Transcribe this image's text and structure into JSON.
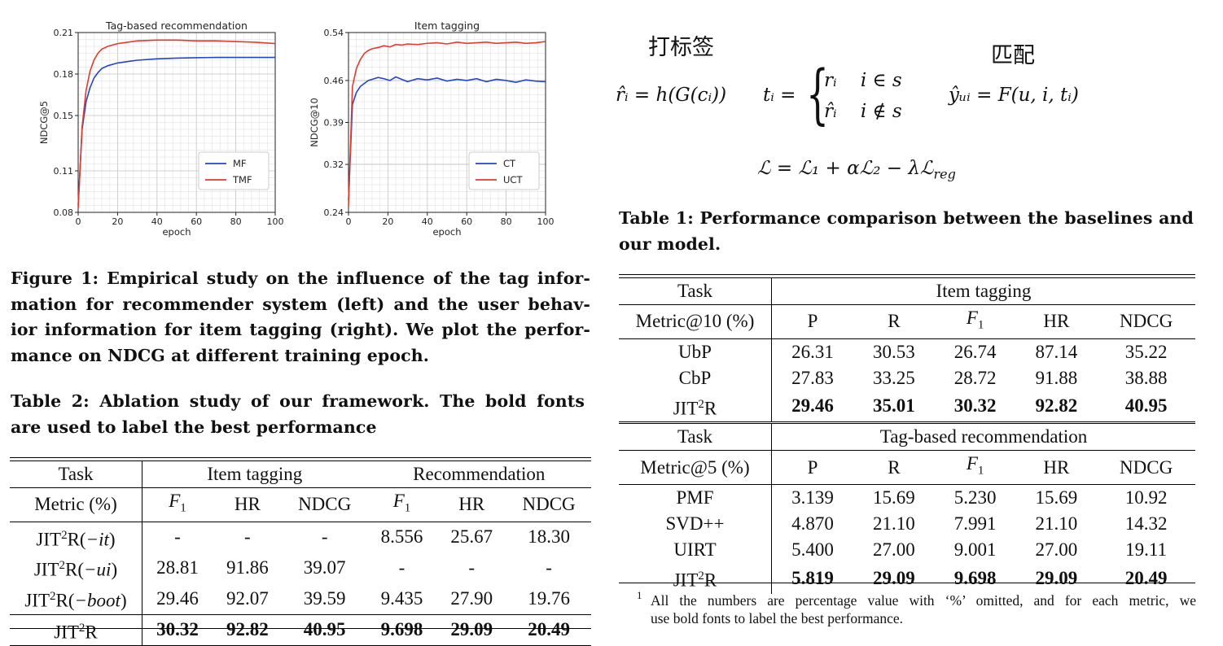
{
  "chart_data": [
    {
      "type": "line",
      "title": "Tag-based recommendation",
      "xlabel": "epoch",
      "ylabel": "NDCG@5",
      "xlim": [
        0,
        100
      ],
      "ylim": [
        0.08,
        0.21
      ],
      "xticks": [
        "0",
        "20",
        "40",
        "60",
        "80",
        "100"
      ],
      "yticks": [
        "0.08",
        "0.11",
        "0.15",
        "0.18",
        "0.21"
      ],
      "ytick_values": [
        0.08,
        0.11,
        0.15,
        0.18,
        0.21
      ],
      "grid": true,
      "legend_position": "lower-right",
      "series": [
        {
          "name": "MF",
          "color": "#2346c8",
          "x": [
            0,
            2,
            4,
            6,
            8,
            10,
            12,
            15,
            20,
            25,
            30,
            40,
            50,
            60,
            70,
            80,
            90,
            100
          ],
          "y": [
            0.085,
            0.14,
            0.16,
            0.17,
            0.177,
            0.181,
            0.184,
            0.186,
            0.188,
            0.189,
            0.19,
            0.191,
            0.1915,
            0.1918,
            0.192,
            0.192,
            0.192,
            0.192
          ]
        },
        {
          "name": "TMF",
          "color": "#e23b2e",
          "x": [
            0,
            2,
            4,
            6,
            8,
            10,
            12,
            15,
            20,
            25,
            30,
            40,
            50,
            60,
            70,
            80,
            90,
            100
          ],
          "y": [
            0.083,
            0.142,
            0.168,
            0.182,
            0.19,
            0.195,
            0.198,
            0.2,
            0.202,
            0.203,
            0.204,
            0.2045,
            0.2045,
            0.204,
            0.204,
            0.2035,
            0.203,
            0.202
          ]
        }
      ]
    },
    {
      "type": "line",
      "title": "Item tagging",
      "xlabel": "epoch",
      "ylabel": "NDCG@10",
      "xlim": [
        0,
        100
      ],
      "ylim": [
        0.24,
        0.54
      ],
      "xticks": [
        "0",
        "20",
        "40",
        "60",
        "80",
        "100"
      ],
      "yticks": [
        "0.24",
        "0.32",
        "0.39",
        "0.46",
        "0.54"
      ],
      "ytick_values": [
        0.24,
        0.32,
        0.39,
        0.46,
        0.54
      ],
      "grid": true,
      "legend_position": "lower-right",
      "series": [
        {
          "name": "CT",
          "color": "#2346c8",
          "x": [
            0,
            2,
            4,
            6,
            8,
            10,
            12,
            15,
            18,
            21,
            24,
            27,
            30,
            35,
            40,
            45,
            50,
            55,
            60,
            65,
            70,
            75,
            80,
            85,
            90,
            95,
            100
          ],
          "y": [
            0.26,
            0.42,
            0.44,
            0.45,
            0.455,
            0.46,
            0.462,
            0.465,
            0.463,
            0.46,
            0.466,
            0.462,
            0.458,
            0.463,
            0.461,
            0.464,
            0.459,
            0.462,
            0.46,
            0.463,
            0.458,
            0.462,
            0.46,
            0.457,
            0.461,
            0.459,
            0.458
          ]
        },
        {
          "name": "UCT",
          "color": "#e23b2e",
          "x": [
            0,
            2,
            4,
            6,
            8,
            10,
            12,
            15,
            18,
            21,
            24,
            27,
            30,
            35,
            40,
            45,
            50,
            55,
            60,
            65,
            70,
            75,
            80,
            85,
            90,
            95,
            100
          ],
          "y": [
            0.25,
            0.45,
            0.48,
            0.495,
            0.505,
            0.51,
            0.513,
            0.515,
            0.518,
            0.516,
            0.52,
            0.519,
            0.521,
            0.52,
            0.522,
            0.523,
            0.521,
            0.524,
            0.522,
            0.523,
            0.524,
            0.522,
            0.523,
            0.524,
            0.522,
            0.523,
            0.525
          ]
        }
      ]
    }
  ],
  "figure_caption": [
    "Figure 1: Empirical study on the influence of the tag infor-",
    "mation for recommender system (left) and the user behav-",
    "ior information for item tagging (right). We plot the perfor-",
    "mance on NDCG at different training epoch."
  ],
  "table2": {
    "caption": [
      "Table 2: Ablation study of our framework. The bold fonts",
      "are used to label the best performance"
    ],
    "header": {
      "task": "Task",
      "group1": "Item tagging",
      "group2": "Recommendation"
    },
    "metric_row": {
      "metric": "Metric (%)",
      "f": "F",
      "sub1": "1",
      "hr": "HR",
      "ndcg": "NDCG"
    },
    "rows": [
      {
        "base": "JIT",
        "sup": "2",
        "rest": "R(",
        "var": "−it",
        "close": ")",
        "cells": [
          "-",
          "-",
          "-",
          "8.556",
          "25.67",
          "18.30"
        ]
      },
      {
        "base": "JIT",
        "sup": "2",
        "rest": "R(",
        "var": "−ui",
        "close": ")",
        "cells": [
          "28.81",
          "91.86",
          "39.07",
          "-",
          "-",
          "-"
        ]
      },
      {
        "base": "JIT",
        "sup": "2",
        "rest": "R(",
        "var": "−boot",
        "close": ")",
        "cells": [
          "29.46",
          "92.07",
          "39.59",
          "9.435",
          "27.90",
          "19.76"
        ]
      }
    ],
    "best_row": {
      "base": "JIT",
      "sup": "2",
      "rest": "R",
      "cells": [
        "30.32",
        "92.82",
        "40.95",
        "9.698",
        "29.09",
        "20.49"
      ]
    }
  },
  "labels": {
    "da_biao_qian": "打标签",
    "pi_pei": "匹配"
  },
  "formulas": {
    "r_hat": "r̂ᵢ = h(G(cᵢ))",
    "t_i": "tᵢ =",
    "case1": "rᵢ    i ∈ s",
    "case2": "r̂ᵢ    i ∉ s",
    "y_hat": "ŷᵤᵢ = F(u, i, tᵢ)",
    "loss": "ℒ = ℒ₁ + αℒ₂ − λℒ",
    "loss_sub": "reg"
  },
  "table1": {
    "caption": [
      "Table 1: Performance comparison between the baselines and",
      "our model."
    ],
    "section1": {
      "task": "Task",
      "group": "Item tagging",
      "metric": "Metric@10 (%)",
      "cols": [
        "P",
        "R",
        "F",
        "HR",
        "NDCG"
      ],
      "rows": [
        {
          "name": "UbP",
          "cells": [
            "26.31",
            "30.53",
            "26.74",
            "87.14",
            "35.22"
          ]
        },
        {
          "name": "CbP",
          "cells": [
            "27.83",
            "33.25",
            "28.72",
            "91.88",
            "38.88"
          ]
        }
      ],
      "best": {
        "base": "JIT",
        "sup": "2",
        "rest": "R",
        "cells": [
          "29.46",
          "35.01",
          "30.32",
          "92.82",
          "40.95"
        ]
      }
    },
    "section2": {
      "task": "Task",
      "group": "Tag-based recommendation",
      "metric": "Metric@5 (%)",
      "cols": [
        "P",
        "R",
        "F",
        "HR",
        "NDCG"
      ],
      "rows": [
        {
          "name": "PMF",
          "cells": [
            "3.139",
            "15.69",
            "5.230",
            "15.69",
            "10.92"
          ]
        },
        {
          "name": "SVD++",
          "cells": [
            "4.870",
            "21.10",
            "7.991",
            "21.10",
            "14.32"
          ]
        },
        {
          "name": "UIRT",
          "cells": [
            "5.400",
            "27.00",
            "9.001",
            "27.00",
            "19.11"
          ]
        }
      ],
      "best": {
        "base": "JIT",
        "sup": "2",
        "rest": "R",
        "cells": [
          "5.819",
          "29.09",
          "9.698",
          "29.09",
          "20.49"
        ]
      }
    },
    "f_sub": "1",
    "footnote_mark": "1",
    "footnote": [
      "All the numbers are percentage value with ‘%’ omitted, and for each metric, we",
      "use bold fonts to label the best performance."
    ]
  }
}
